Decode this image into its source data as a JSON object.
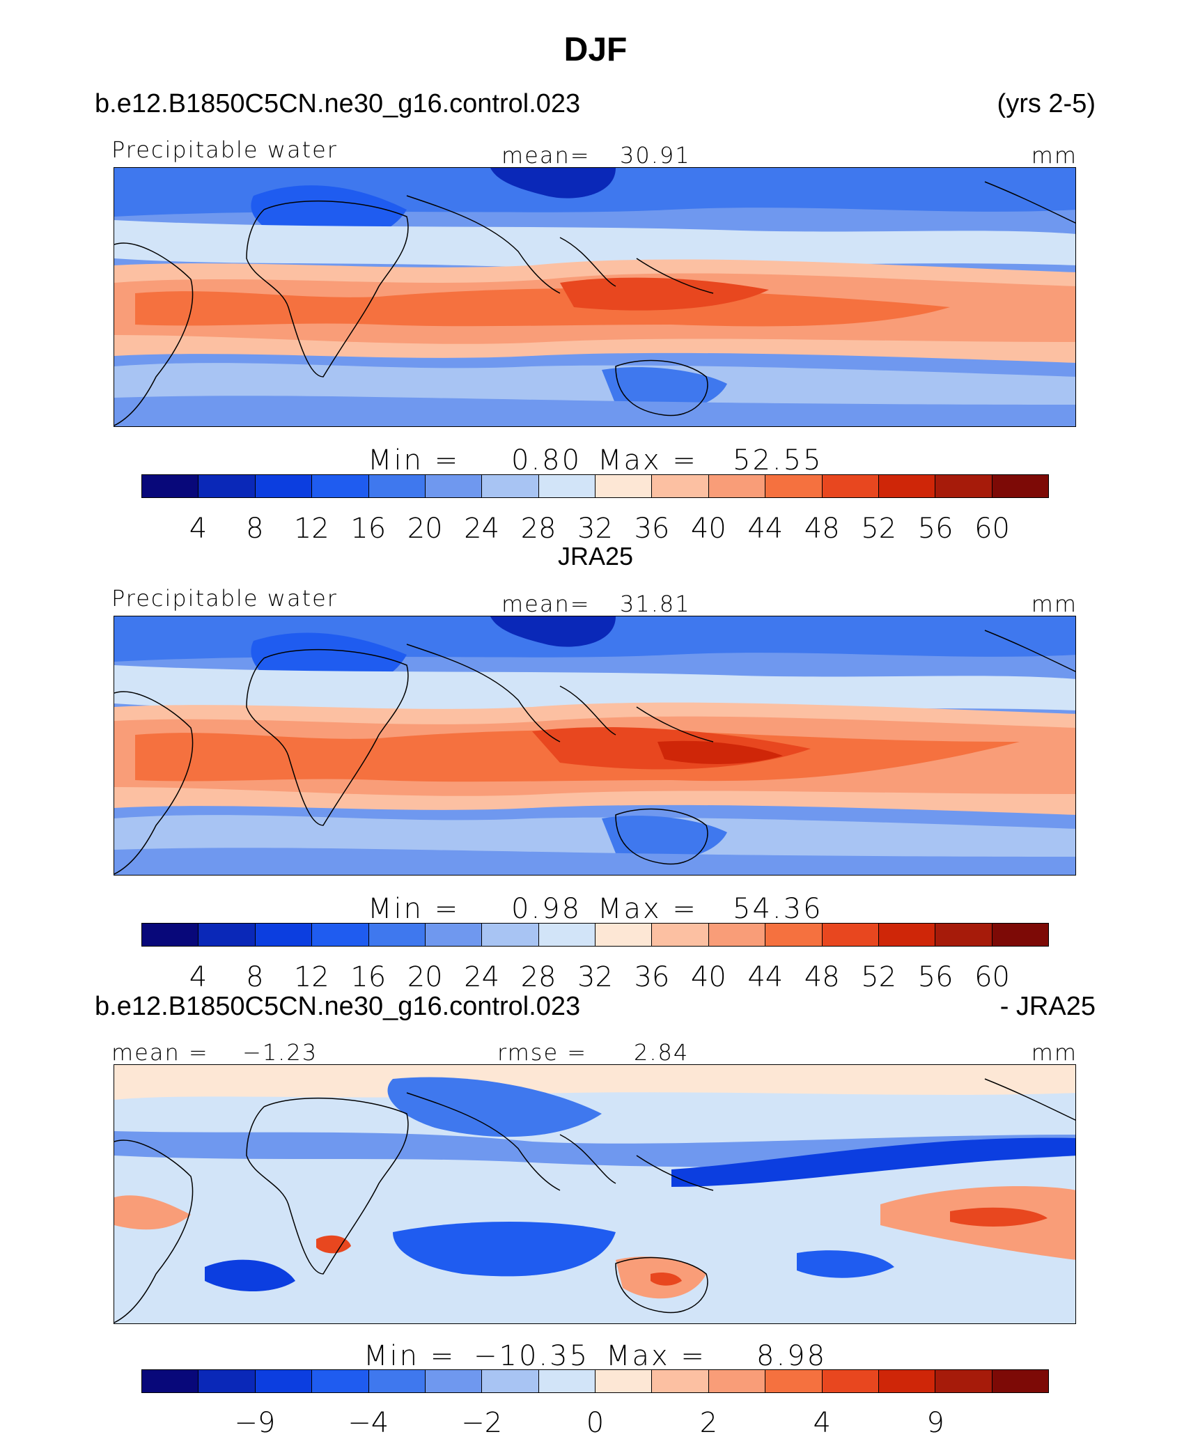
{
  "figure": {
    "title": "DJF"
  },
  "palette": [
    "#08087a",
    "#0a28b8",
    "#0c3ee0",
    "#1f5cf0",
    "#3f78ee",
    "#6f98ef",
    "#a8c4f3",
    "#d2e4f8",
    "#fde7d5",
    "#fcc0a2",
    "#f99d78",
    "#f5713f",
    "#e8471f",
    "#cf2608",
    "#a61b0a",
    "#7d0a06"
  ],
  "panels": [
    {
      "id": "model",
      "case_label": "b.e12.B1850C5CN.ne30_g16.control.023",
      "right_label": "(yrs 2-5)",
      "var_label": "Precipitable water",
      "mean_label": "mean=",
      "mean_value": "30.91",
      "units": "mm",
      "min_label": "Min =",
      "min_value": "0.80",
      "max_label": "Max =",
      "max_value": "52.55",
      "ticks": [
        "4",
        "8",
        "12",
        "16",
        "20",
        "24",
        "28",
        "32",
        "36",
        "40",
        "44",
        "48",
        "52",
        "56",
        "60"
      ]
    },
    {
      "id": "obs",
      "case_label": "JRA25",
      "var_label": "Precipitable water",
      "mean_label": "mean=",
      "mean_value": "31.81",
      "units": "mm",
      "min_label": "Min =",
      "min_value": "0.98",
      "max_label": "Max =",
      "max_value": "54.36",
      "ticks": [
        "4",
        "8",
        "12",
        "16",
        "20",
        "24",
        "28",
        "32",
        "36",
        "40",
        "44",
        "48",
        "52",
        "56",
        "60"
      ]
    },
    {
      "id": "diff",
      "case_label": "b.e12.B1850C5CN.ne30_g16.control.023",
      "right_label": "- JRA25",
      "mean_label": "mean =",
      "mean_value": "−1.23",
      "rmse_label": "rmse =",
      "rmse_value": "2.84",
      "units": "mm",
      "min_label": "Min =",
      "min_value": "−10.35",
      "max_label": "Max =",
      "max_value": "8.98",
      "ticks": [
        "",
        "−9",
        "",
        "−4",
        "",
        "−2",
        "",
        "0",
        "",
        "2",
        "",
        "4",
        "",
        "9",
        ""
      ]
    }
  ]
}
